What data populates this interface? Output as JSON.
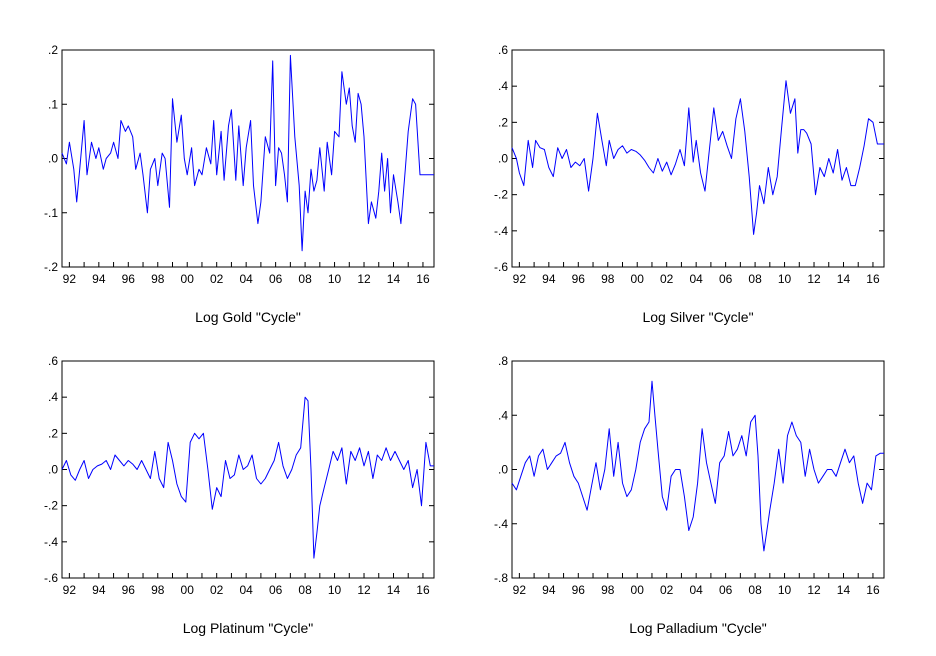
{
  "chart_data": [
    {
      "type": "line",
      "title": "Log Gold \"Cycle\"",
      "x_tick_labels": [
        "92",
        "94",
        "96",
        "98",
        "00",
        "02",
        "04",
        "06",
        "08",
        "10",
        "12",
        "14",
        "16"
      ],
      "xlim": [
        1991.5,
        2016.75
      ],
      "ylim": [
        -0.2,
        0.2
      ],
      "y_ticks": [
        0.2,
        0.1,
        0.0,
        -0.1,
        -0.2
      ],
      "y_tick_labels": [
        ".2",
        ".1",
        ".0",
        "-.1",
        "-.2"
      ],
      "grid": false,
      "series": [
        {
          "color": "#0000ff",
          "x": [
            1991.5,
            1991.8,
            1992.0,
            1992.3,
            1992.5,
            1992.7,
            1993.0,
            1993.2,
            1993.5,
            1993.8,
            1994.0,
            1994.3,
            1994.5,
            1994.8,
            1995.0,
            1995.3,
            1995.5,
            1995.8,
            1996.0,
            1996.3,
            1996.5,
            1996.8,
            1997.0,
            1997.3,
            1997.5,
            1997.8,
            1998.0,
            1998.3,
            1998.5,
            1998.8,
            1999.0,
            1999.3,
            1999.6,
            1999.8,
            2000.0,
            2000.3,
            2000.5,
            2000.8,
            2001.0,
            2001.3,
            2001.6,
            2001.8,
            2002.0,
            2002.3,
            2002.5,
            2002.8,
            2003.0,
            2003.3,
            2003.5,
            2003.8,
            2004.0,
            2004.3,
            2004.5,
            2004.8,
            2005.0,
            2005.3,
            2005.6,
            2005.8,
            2006.0,
            2006.2,
            2006.4,
            2006.6,
            2006.8,
            2007.0,
            2007.3,
            2007.6,
            2007.8,
            2008.0,
            2008.2,
            2008.4,
            2008.6,
            2008.8,
            2009.0,
            2009.3,
            2009.5,
            2009.8,
            2010.0,
            2010.3,
            2010.5,
            2010.8,
            2011.0,
            2011.2,
            2011.4,
            2011.6,
            2011.8,
            2012.0,
            2012.3,
            2012.5,
            2012.8,
            2013.0,
            2013.2,
            2013.4,
            2013.6,
            2013.8,
            2014.0,
            2014.3,
            2014.5,
            2014.8,
            2015.0,
            2015.3,
            2015.5,
            2015.8,
            2016.0,
            2016.2,
            2016.4,
            2016.6,
            2016.75
          ],
          "y": [
            0.01,
            -0.01,
            0.03,
            -0.02,
            -0.08,
            -0.02,
            0.07,
            -0.03,
            0.03,
            0.0,
            0.02,
            -0.02,
            0.0,
            0.01,
            0.03,
            0.0,
            0.07,
            0.05,
            0.06,
            0.04,
            -0.02,
            0.01,
            -0.03,
            -0.1,
            -0.02,
            0.0,
            -0.05,
            0.01,
            0.0,
            -0.09,
            0.11,
            0.03,
            0.08,
            0.0,
            -0.03,
            0.02,
            -0.05,
            -0.02,
            -0.03,
            0.02,
            -0.01,
            0.07,
            -0.03,
            0.05,
            -0.04,
            0.06,
            0.09,
            -0.04,
            0.06,
            -0.05,
            0.02,
            0.07,
            -0.05,
            -0.12,
            -0.08,
            0.04,
            0.01,
            0.18,
            -0.05,
            0.02,
            0.01,
            -0.03,
            -0.08,
            0.19,
            0.04,
            -0.05,
            -0.17,
            -0.06,
            -0.1,
            -0.02,
            -0.06,
            -0.04,
            0.02,
            -0.06,
            0.03,
            -0.03,
            0.05,
            0.04,
            0.16,
            0.1,
            0.13,
            0.06,
            0.03,
            0.12,
            0.1,
            0.04,
            -0.12,
            -0.08,
            -0.11,
            -0.06,
            0.01,
            -0.06,
            0.0,
            -0.1,
            -0.03,
            -0.08,
            -0.12,
            -0.02,
            0.05,
            0.11,
            0.1,
            -0.03,
            -0.03,
            -0.03,
            -0.03,
            -0.03,
            -0.03
          ]
        }
      ]
    },
    {
      "type": "line",
      "title": "Log Silver \"Cycle\"",
      "x_tick_labels": [
        "92",
        "94",
        "96",
        "98",
        "00",
        "02",
        "04",
        "06",
        "08",
        "10",
        "12",
        "14",
        "16"
      ],
      "xlim": [
        1991.5,
        2016.75
      ],
      "ylim": [
        -0.6,
        0.6
      ],
      "y_ticks": [
        0.6,
        0.4,
        0.2,
        0.0,
        -0.2,
        -0.4,
        -0.6
      ],
      "y_tick_labels": [
        ".6",
        ".4",
        ".2",
        ".0",
        "-.2",
        "-.4",
        "-.6"
      ],
      "grid": false,
      "series": [
        {
          "color": "#0000ff",
          "x": [
            1991.5,
            1991.8,
            1992.0,
            1992.3,
            1992.6,
            1992.9,
            1993.1,
            1993.4,
            1993.7,
            1994.0,
            1994.3,
            1994.6,
            1994.9,
            1995.2,
            1995.5,
            1995.8,
            1996.1,
            1996.4,
            1996.7,
            1997.0,
            1997.3,
            1997.6,
            1997.9,
            1998.1,
            1998.4,
            1998.7,
            1999.0,
            1999.3,
            1999.6,
            1999.9,
            2000.2,
            2000.5,
            2000.8,
            2001.1,
            2001.4,
            2001.7,
            2002.0,
            2002.3,
            2002.6,
            2002.9,
            2003.2,
            2003.5,
            2003.8,
            2004.0,
            2004.3,
            2004.6,
            2004.9,
            2005.2,
            2005.5,
            2005.8,
            2006.1,
            2006.4,
            2006.7,
            2007.0,
            2007.3,
            2007.6,
            2007.9,
            2008.1,
            2008.3,
            2008.6,
            2008.9,
            2009.2,
            2009.5,
            2009.8,
            2010.1,
            2010.4,
            2010.7,
            2010.9,
            2011.1,
            2011.3,
            2011.5,
            2011.8,
            2012.1,
            2012.4,
            2012.7,
            2013.0,
            2013.3,
            2013.6,
            2013.9,
            2014.2,
            2014.5,
            2014.8,
            2015.1,
            2015.4,
            2015.7,
            2016.0,
            2016.3,
            2016.5,
            2016.75
          ],
          "y": [
            0.06,
            0.0,
            -0.08,
            -0.15,
            0.1,
            -0.05,
            0.1,
            0.06,
            0.05,
            -0.05,
            -0.1,
            0.06,
            0.0,
            0.05,
            -0.05,
            -0.02,
            -0.04,
            0.0,
            -0.18,
            0.0,
            0.25,
            0.1,
            -0.04,
            0.1,
            0.0,
            0.05,
            0.07,
            0.03,
            0.05,
            0.04,
            0.02,
            -0.01,
            -0.05,
            -0.08,
            0.0,
            -0.07,
            -0.02,
            -0.09,
            -0.03,
            0.05,
            -0.04,
            0.28,
            -0.02,
            0.1,
            -0.08,
            -0.18,
            0.05,
            0.28,
            0.1,
            0.15,
            0.07,
            0.0,
            0.22,
            0.33,
            0.15,
            -0.1,
            -0.42,
            -0.3,
            -0.15,
            -0.25,
            -0.05,
            -0.2,
            -0.1,
            0.17,
            0.43,
            0.25,
            0.33,
            0.03,
            0.16,
            0.16,
            0.14,
            0.08,
            -0.2,
            -0.05,
            -0.1,
            0.0,
            -0.08,
            0.05,
            -0.12,
            -0.05,
            -0.15,
            -0.15,
            -0.05,
            0.07,
            0.22,
            0.2,
            0.08,
            0.08,
            0.08
          ]
        }
      ]
    },
    {
      "type": "line",
      "title": "Log Platinum \"Cycle\"",
      "x_tick_labels": [
        "92",
        "94",
        "96",
        "98",
        "00",
        "02",
        "04",
        "06",
        "08",
        "10",
        "12",
        "14",
        "16"
      ],
      "xlim": [
        1991.5,
        2016.75
      ],
      "ylim": [
        -0.6,
        0.6
      ],
      "y_ticks": [
        0.6,
        0.4,
        0.2,
        0.0,
        -0.2,
        -0.4,
        -0.6
      ],
      "y_tick_labels": [
        ".6",
        ".4",
        ".2",
        ".0",
        "-.2",
        "-.4",
        "-.6"
      ],
      "grid": false,
      "series": [
        {
          "color": "#0000ff",
          "x": [
            1991.5,
            1991.8,
            1992.1,
            1992.4,
            1992.7,
            1993.0,
            1993.3,
            1993.6,
            1993.9,
            1994.2,
            1994.5,
            1994.8,
            1995.1,
            1995.4,
            1995.7,
            1996.0,
            1996.3,
            1996.6,
            1996.9,
            1997.2,
            1997.5,
            1997.8,
            1998.1,
            1998.4,
            1998.7,
            1999.0,
            1999.3,
            1999.6,
            1999.9,
            2000.2,
            2000.5,
            2000.8,
            2001.1,
            2001.4,
            2001.7,
            2002.0,
            2002.3,
            2002.6,
            2002.9,
            2003.2,
            2003.5,
            2003.8,
            2004.1,
            2004.4,
            2004.7,
            2005.0,
            2005.3,
            2005.6,
            2005.9,
            2006.2,
            2006.5,
            2006.8,
            2007.1,
            2007.4,
            2007.7,
            2008.0,
            2008.2,
            2008.4,
            2008.6,
            2008.8,
            2009.0,
            2009.3,
            2009.6,
            2009.9,
            2010.2,
            2010.5,
            2010.8,
            2011.1,
            2011.4,
            2011.7,
            2012.0,
            2012.3,
            2012.6,
            2012.9,
            2013.2,
            2013.5,
            2013.8,
            2014.1,
            2014.4,
            2014.7,
            2015.0,
            2015.3,
            2015.6,
            2015.9,
            2016.2,
            2016.5,
            2016.75
          ],
          "y": [
            0.0,
            0.05,
            -0.03,
            -0.06,
            0.0,
            0.05,
            -0.05,
            0.0,
            0.02,
            0.03,
            0.05,
            0.0,
            0.08,
            0.05,
            0.02,
            0.05,
            0.03,
            0.0,
            0.05,
            0.0,
            -0.05,
            0.1,
            -0.05,
            -0.1,
            0.15,
            0.05,
            -0.08,
            -0.15,
            -0.18,
            0.15,
            0.2,
            0.17,
            0.2,
            0.0,
            -0.22,
            -0.1,
            -0.15,
            0.05,
            -0.05,
            -0.03,
            0.08,
            0.0,
            0.02,
            0.08,
            -0.05,
            -0.08,
            -0.05,
            0.0,
            0.05,
            0.15,
            0.02,
            -0.05,
            0.0,
            0.08,
            0.12,
            0.4,
            0.38,
            0.0,
            -0.49,
            -0.35,
            -0.2,
            -0.1,
            0.0,
            0.1,
            0.05,
            0.12,
            -0.08,
            0.1,
            0.05,
            0.12,
            0.02,
            0.1,
            -0.05,
            0.08,
            0.05,
            0.12,
            0.05,
            0.1,
            0.05,
            0.0,
            0.05,
            -0.1,
            0.0,
            -0.2,
            0.15,
            0.02,
            0.02
          ]
        }
      ]
    },
    {
      "type": "line",
      "title": "Log Palladium \"Cycle\"",
      "x_tick_labels": [
        "92",
        "94",
        "96",
        "98",
        "00",
        "02",
        "04",
        "06",
        "08",
        "10",
        "12",
        "14",
        "16"
      ],
      "xlim": [
        1991.5,
        2016.75
      ],
      "ylim": [
        -0.8,
        0.8
      ],
      "y_ticks": [
        0.8,
        0.4,
        0.0,
        -0.4,
        -0.8
      ],
      "y_tick_labels": [
        ".8",
        ".4",
        ".0",
        "-.4",
        "-.8"
      ],
      "grid": false,
      "series": [
        {
          "color": "#0000ff",
          "x": [
            1991.5,
            1991.8,
            1992.1,
            1992.4,
            1992.7,
            1993.0,
            1993.3,
            1993.6,
            1993.9,
            1994.2,
            1994.5,
            1994.8,
            1995.1,
            1995.4,
            1995.7,
            1996.0,
            1996.3,
            1996.6,
            1996.9,
            1997.2,
            1997.5,
            1997.8,
            1998.1,
            1998.4,
            1998.7,
            1999.0,
            1999.3,
            1999.6,
            1999.9,
            2000.2,
            2000.5,
            2000.8,
            2001.0,
            2001.2,
            2001.4,
            2001.7,
            2002.0,
            2002.3,
            2002.6,
            2002.9,
            2003.2,
            2003.5,
            2003.8,
            2004.1,
            2004.4,
            2004.7,
            2005.0,
            2005.3,
            2005.6,
            2005.9,
            2006.2,
            2006.5,
            2006.8,
            2007.1,
            2007.4,
            2007.7,
            2008.0,
            2008.2,
            2008.4,
            2008.6,
            2008.8,
            2009.0,
            2009.3,
            2009.6,
            2009.9,
            2010.2,
            2010.5,
            2010.8,
            2011.1,
            2011.4,
            2011.7,
            2012.0,
            2012.3,
            2012.6,
            2012.9,
            2013.2,
            2013.5,
            2013.8,
            2014.1,
            2014.4,
            2014.7,
            2015.0,
            2015.3,
            2015.6,
            2015.9,
            2016.2,
            2016.5,
            2016.75
          ],
          "y": [
            -0.1,
            -0.15,
            -0.05,
            0.05,
            0.1,
            -0.05,
            0.1,
            0.15,
            0.0,
            0.05,
            0.1,
            0.12,
            0.2,
            0.05,
            -0.05,
            -0.1,
            -0.2,
            -0.3,
            -0.12,
            0.05,
            -0.15,
            0.0,
            0.3,
            -0.05,
            0.2,
            -0.1,
            -0.2,
            -0.15,
            0.0,
            0.2,
            0.3,
            0.35,
            0.65,
            0.4,
            0.15,
            -0.2,
            -0.3,
            -0.05,
            0.0,
            0.0,
            -0.2,
            -0.45,
            -0.35,
            -0.1,
            0.3,
            0.05,
            -0.1,
            -0.25,
            0.05,
            0.1,
            0.28,
            0.1,
            0.15,
            0.25,
            0.1,
            0.35,
            0.4,
            0.1,
            -0.4,
            -0.6,
            -0.45,
            -0.3,
            -0.1,
            0.15,
            -0.1,
            0.25,
            0.35,
            0.25,
            0.2,
            -0.05,
            0.15,
            0.0,
            -0.1,
            -0.05,
            0.0,
            0.0,
            -0.05,
            0.05,
            0.15,
            0.05,
            0.1,
            -0.1,
            -0.25,
            -0.1,
            -0.15,
            0.1,
            0.12,
            0.12
          ]
        }
      ]
    }
  ]
}
